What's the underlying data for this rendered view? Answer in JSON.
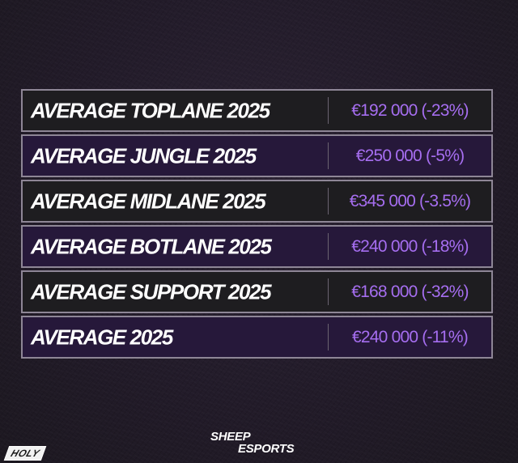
{
  "table": {
    "rows": [
      {
        "label": "AVERAGE TOPLANE 2025",
        "value": "€192 000 (-23%)",
        "style": "dark"
      },
      {
        "label": "AVERAGE JUNGLE 2025",
        "value": "€250 000 (-5%)",
        "style": "purple"
      },
      {
        "label": "AVERAGE MIDLANE 2025",
        "value": "€345 000 (-3.5%)",
        "style": "dark"
      },
      {
        "label": "AVERAGE BOTLANE 2025",
        "value": "€240 000 (-18%)",
        "style": "purple"
      },
      {
        "label": "AVERAGE SUPPORT 2025",
        "value": "€168 000 (-32%)",
        "style": "dark"
      },
      {
        "label": "AVERAGE 2025",
        "value": "€240 000 (-11%)",
        "style": "purple"
      }
    ]
  },
  "footer": {
    "left_logo": "HOLY",
    "center_logo_line1": "SHEEP",
    "center_logo_line2": "ESPORTS"
  },
  "colors": {
    "value_text": "#a66ef0",
    "row_dark": "#1e1d20",
    "row_purple": "#26183a",
    "border": "#8e8696"
  }
}
